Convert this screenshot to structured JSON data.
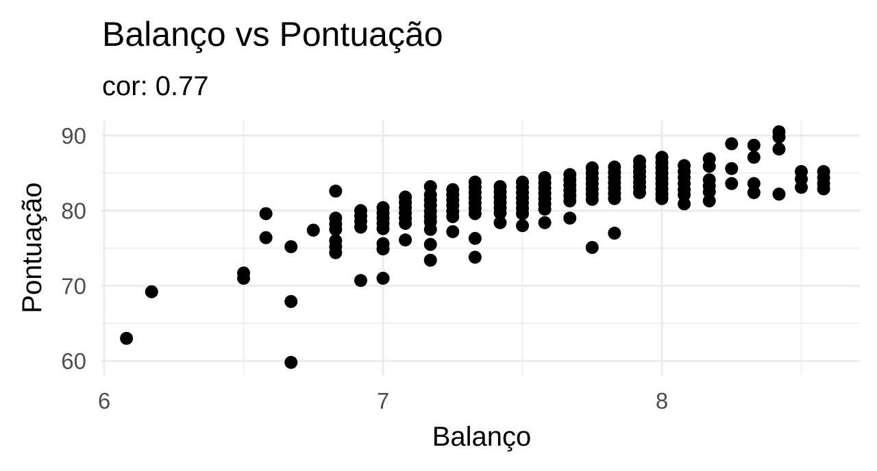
{
  "chart_data": {
    "type": "scatter",
    "title": "Balanço vs Pontuação",
    "subtitle": "cor: 0.77",
    "xlabel": "Balanço",
    "ylabel": "Pontuação",
    "xlim": [
      5.99,
      8.71
    ],
    "ylim": [
      58.1,
      92.0
    ],
    "x_ticks": [
      6,
      7,
      8
    ],
    "y_ticks": [
      60,
      70,
      80,
      90
    ],
    "x_minor": [
      6.5,
      7.5,
      8.5
    ],
    "y_minor": [
      65,
      75,
      85
    ],
    "grid": true,
    "legend": "none",
    "point_color": "#000000",
    "points": [
      [
        6.08,
        63.0
      ],
      [
        6.17,
        69.2
      ],
      [
        6.5,
        71.7
      ],
      [
        6.5,
        71.0
      ],
      [
        6.58,
        79.6
      ],
      [
        6.58,
        76.4
      ],
      [
        6.67,
        75.2
      ],
      [
        6.67,
        67.9
      ],
      [
        6.67,
        59.8
      ],
      [
        6.75,
        77.4
      ],
      [
        6.83,
        82.6
      ],
      [
        6.83,
        79.0
      ],
      [
        6.83,
        78.2
      ],
      [
        6.83,
        77.5
      ],
      [
        6.83,
        76.0
      ],
      [
        6.83,
        75.2
      ],
      [
        6.83,
        74.4
      ],
      [
        6.92,
        80.0
      ],
      [
        6.92,
        79.3
      ],
      [
        6.92,
        78.6
      ],
      [
        6.92,
        77.8
      ],
      [
        6.92,
        70.7
      ],
      [
        7.0,
        80.4
      ],
      [
        7.0,
        79.7
      ],
      [
        7.0,
        79.0
      ],
      [
        7.0,
        78.3
      ],
      [
        7.0,
        77.6
      ],
      [
        7.0,
        75.6
      ],
      [
        7.0,
        74.9
      ],
      [
        7.0,
        71.0
      ],
      [
        7.08,
        81.8
      ],
      [
        7.08,
        81.1
      ],
      [
        7.08,
        80.4
      ],
      [
        7.08,
        79.7
      ],
      [
        7.08,
        79.0
      ],
      [
        7.08,
        78.3
      ],
      [
        7.08,
        76.1
      ],
      [
        7.17,
        83.2
      ],
      [
        7.17,
        82.1
      ],
      [
        7.17,
        81.4
      ],
      [
        7.17,
        80.7
      ],
      [
        7.17,
        79.9
      ],
      [
        7.17,
        79.2
      ],
      [
        7.17,
        78.5
      ],
      [
        7.17,
        77.5
      ],
      [
        7.17,
        75.5
      ],
      [
        7.17,
        73.4
      ],
      [
        7.25,
        82.8
      ],
      [
        7.25,
        82.1
      ],
      [
        7.25,
        81.4
      ],
      [
        7.25,
        80.7
      ],
      [
        7.25,
        79.9
      ],
      [
        7.25,
        79.2
      ],
      [
        7.25,
        77.2
      ],
      [
        7.33,
        83.8
      ],
      [
        7.33,
        83.1
      ],
      [
        7.33,
        82.4
      ],
      [
        7.33,
        81.7
      ],
      [
        7.33,
        81.0
      ],
      [
        7.33,
        80.3
      ],
      [
        7.33,
        79.6
      ],
      [
        7.33,
        76.3
      ],
      [
        7.33,
        73.8
      ],
      [
        7.42,
        83.2
      ],
      [
        7.42,
        82.5
      ],
      [
        7.42,
        81.8
      ],
      [
        7.42,
        81.1
      ],
      [
        7.42,
        80.4
      ],
      [
        7.42,
        79.7
      ],
      [
        7.42,
        78.4
      ],
      [
        7.5,
        83.8
      ],
      [
        7.5,
        83.1
      ],
      [
        7.5,
        82.4
      ],
      [
        7.5,
        81.7
      ],
      [
        7.5,
        81.0
      ],
      [
        7.5,
        80.3
      ],
      [
        7.5,
        79.6
      ],
      [
        7.5,
        78.0
      ],
      [
        7.58,
        84.4
      ],
      [
        7.58,
        83.7
      ],
      [
        7.58,
        83.0
      ],
      [
        7.58,
        82.3
      ],
      [
        7.58,
        81.6
      ],
      [
        7.58,
        80.9
      ],
      [
        7.58,
        80.2
      ],
      [
        7.58,
        78.4
      ],
      [
        7.67,
        84.8
      ],
      [
        7.67,
        84.1
      ],
      [
        7.67,
        83.4
      ],
      [
        7.67,
        82.7
      ],
      [
        7.67,
        82.0
      ],
      [
        7.67,
        81.3
      ],
      [
        7.67,
        79.0
      ],
      [
        7.75,
        85.7
      ],
      [
        7.75,
        85.0
      ],
      [
        7.75,
        84.3
      ],
      [
        7.75,
        83.6
      ],
      [
        7.75,
        82.9
      ],
      [
        7.75,
        82.2
      ],
      [
        7.75,
        81.5
      ],
      [
        7.75,
        75.1
      ],
      [
        7.83,
        85.8
      ],
      [
        7.83,
        85.1
      ],
      [
        7.83,
        84.4
      ],
      [
        7.83,
        83.7
      ],
      [
        7.83,
        83.0
      ],
      [
        7.83,
        82.3
      ],
      [
        7.83,
        81.6
      ],
      [
        7.83,
        77.0
      ],
      [
        7.92,
        86.6
      ],
      [
        7.92,
        85.9
      ],
      [
        7.92,
        85.2
      ],
      [
        7.92,
        84.5
      ],
      [
        7.92,
        83.8
      ],
      [
        7.92,
        83.1
      ],
      [
        7.92,
        82.4
      ],
      [
        8.0,
        87.1
      ],
      [
        8.0,
        86.4
      ],
      [
        8.0,
        85.7
      ],
      [
        8.0,
        85.0
      ],
      [
        8.0,
        84.3
      ],
      [
        8.0,
        83.6
      ],
      [
        8.0,
        82.9
      ],
      [
        8.0,
        82.2
      ],
      [
        8.0,
        81.6
      ],
      [
        8.08,
        86.0
      ],
      [
        8.08,
        85.2
      ],
      [
        8.08,
        84.4
      ],
      [
        8.08,
        83.6
      ],
      [
        8.08,
        82.8
      ],
      [
        8.08,
        82.1
      ],
      [
        8.08,
        80.9
      ],
      [
        8.17,
        86.9
      ],
      [
        8.17,
        85.9
      ],
      [
        8.17,
        84.1
      ],
      [
        8.17,
        83.3
      ],
      [
        8.17,
        82.5
      ],
      [
        8.17,
        81.3
      ],
      [
        8.25,
        88.9
      ],
      [
        8.25,
        85.6
      ],
      [
        8.25,
        83.6
      ],
      [
        8.33,
        88.7
      ],
      [
        8.33,
        87.1
      ],
      [
        8.33,
        83.6
      ],
      [
        8.33,
        82.4
      ],
      [
        8.42,
        90.5
      ],
      [
        8.42,
        89.8
      ],
      [
        8.42,
        88.2
      ],
      [
        8.42,
        82.2
      ],
      [
        8.5,
        85.2
      ],
      [
        8.5,
        84.2
      ],
      [
        8.5,
        83.1
      ],
      [
        8.58,
        85.2
      ],
      [
        8.58,
        84.4
      ],
      [
        8.58,
        83.6
      ],
      [
        8.58,
        82.9
      ]
    ]
  }
}
